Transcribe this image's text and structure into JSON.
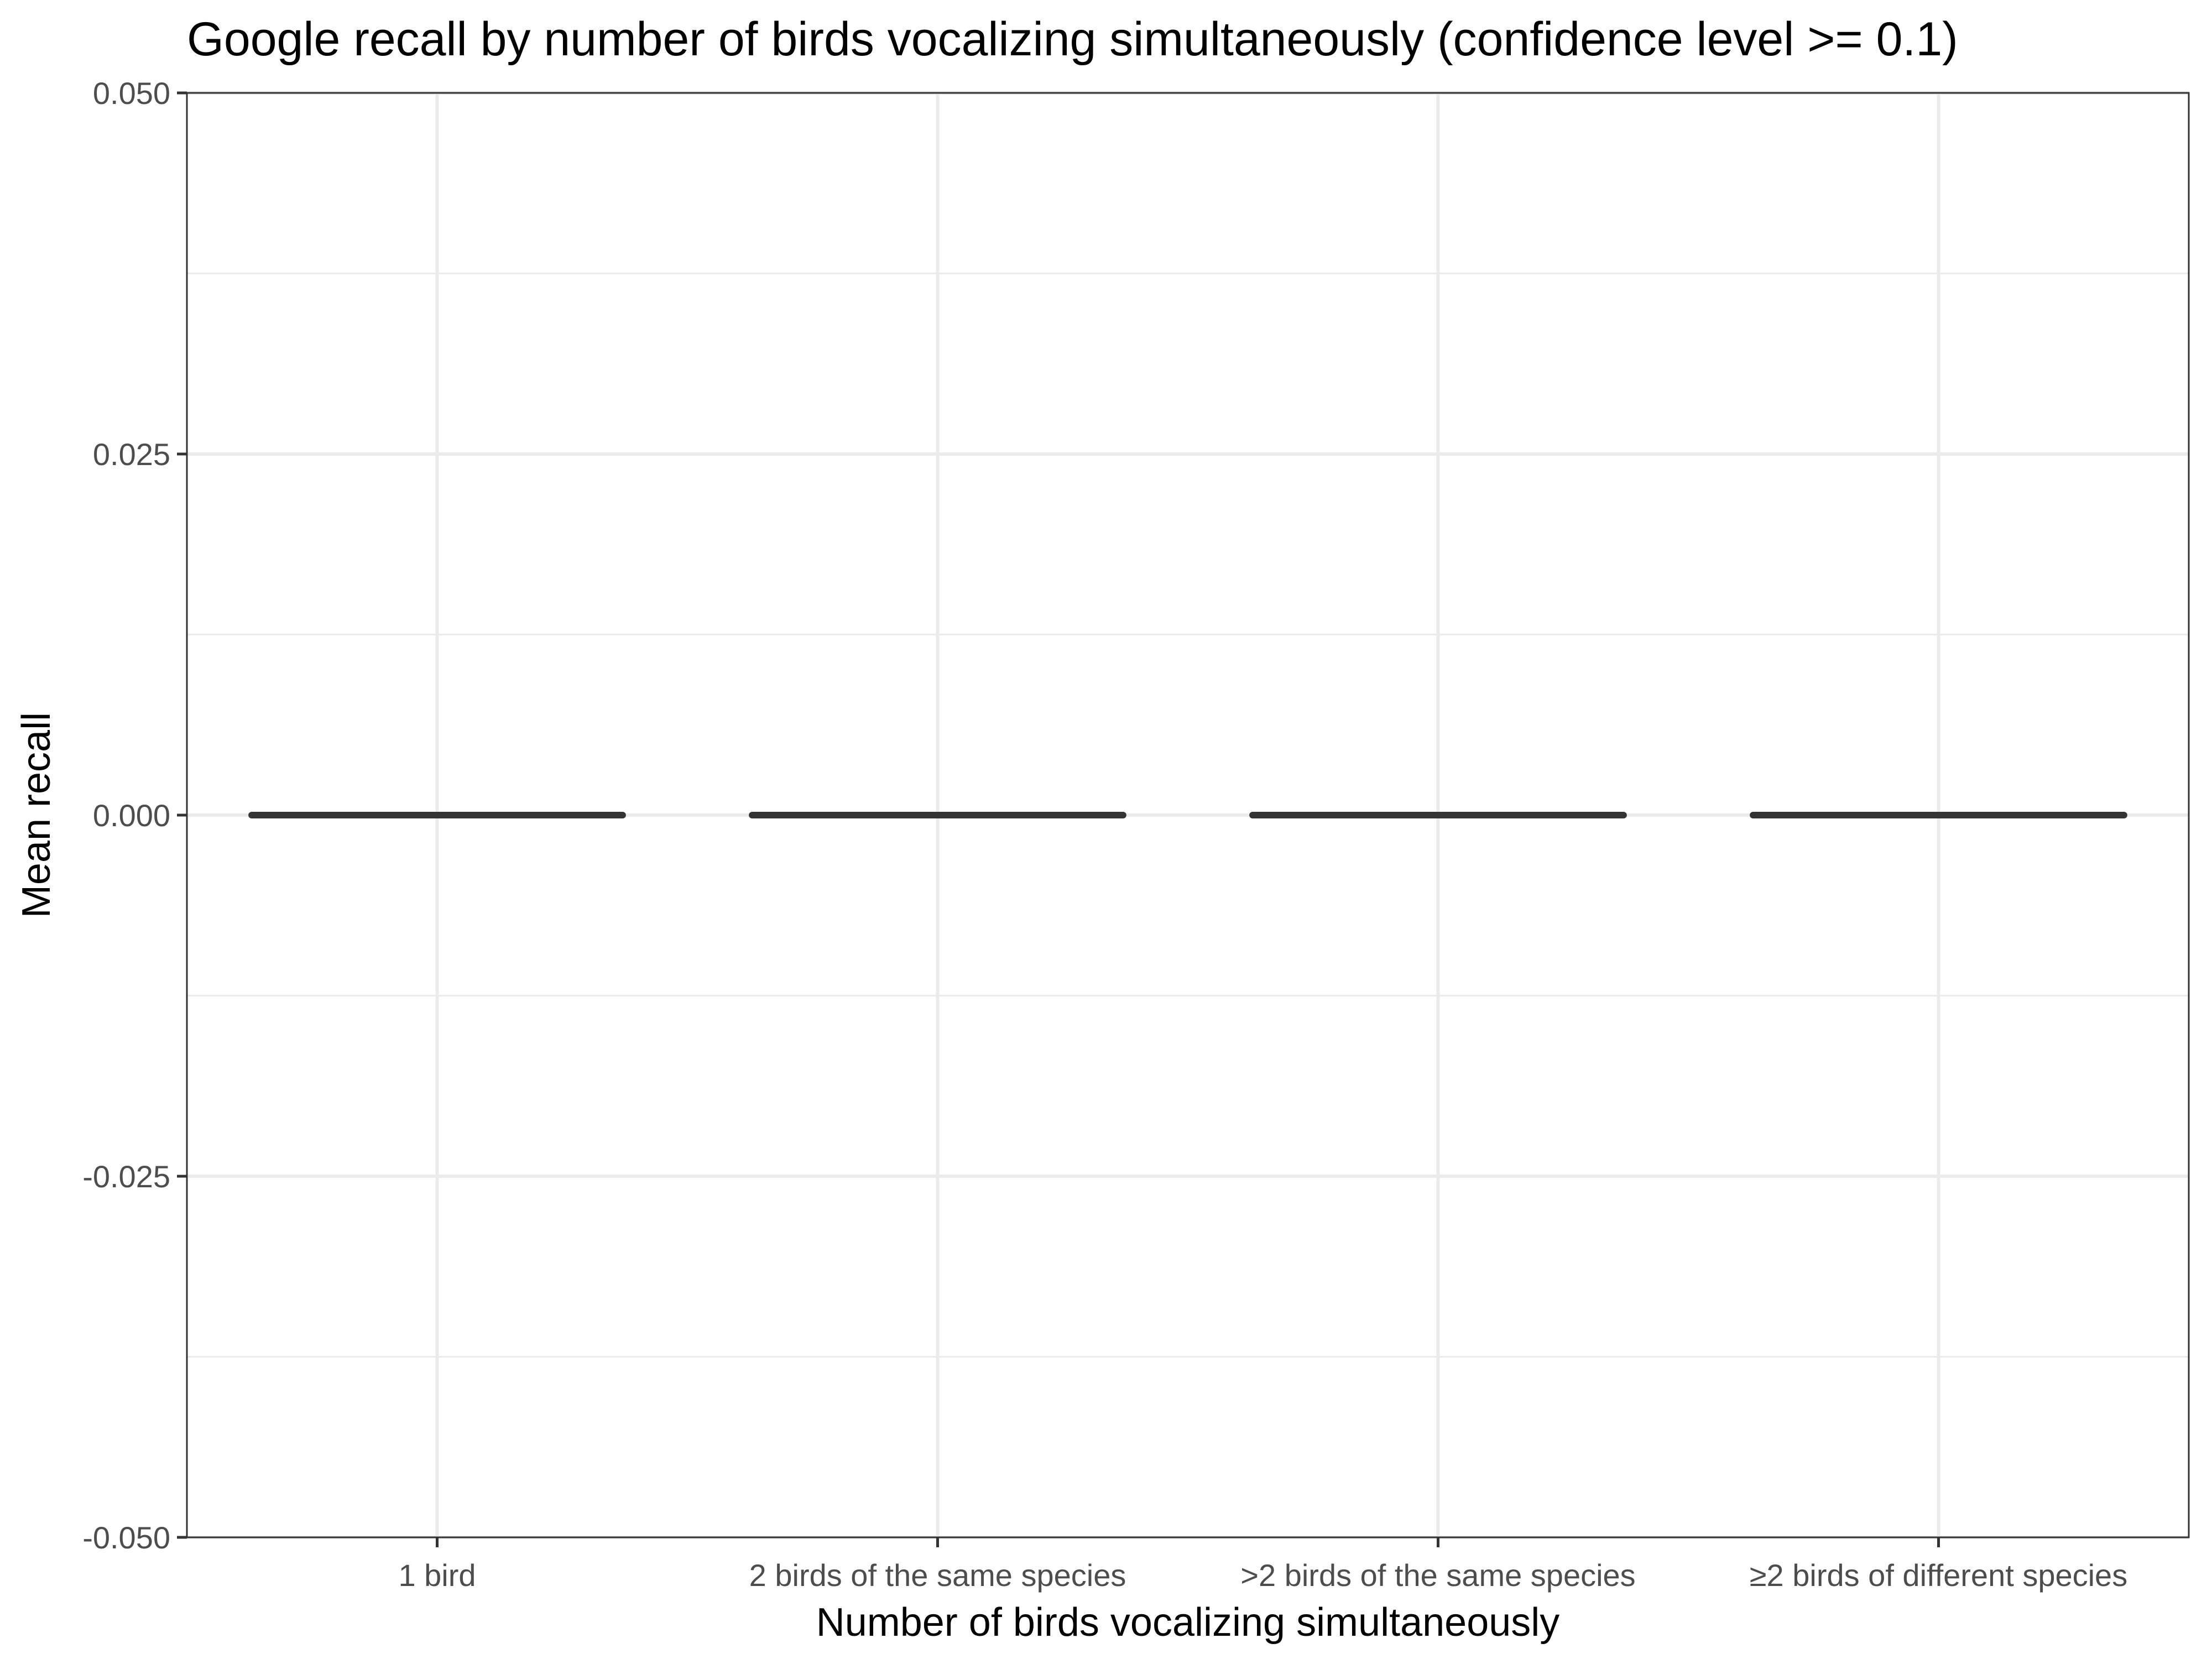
{
  "chart_data": {
    "type": "bar",
    "title": "Google recall by number of birds vocalizing simultaneously (confidence level >= 0.1)",
    "xlabel": "Number of birds vocalizing simultaneously",
    "ylabel": "Mean recall",
    "categories": [
      "1 bird",
      "2 birds of the same species",
      ">2 birds of the same species",
      "≥2 birds of different species"
    ],
    "values": [
      0,
      0,
      0,
      0
    ],
    "ylim": [
      -0.05,
      0.05
    ],
    "yticks": [
      -0.05,
      -0.025,
      0,
      0.025,
      0.05
    ],
    "ytick_labels": [
      "-0.050",
      "-0.025",
      "0.000",
      "0.025",
      "0.050"
    ],
    "grid": true,
    "legend": "none",
    "bar_color": "#333333"
  }
}
